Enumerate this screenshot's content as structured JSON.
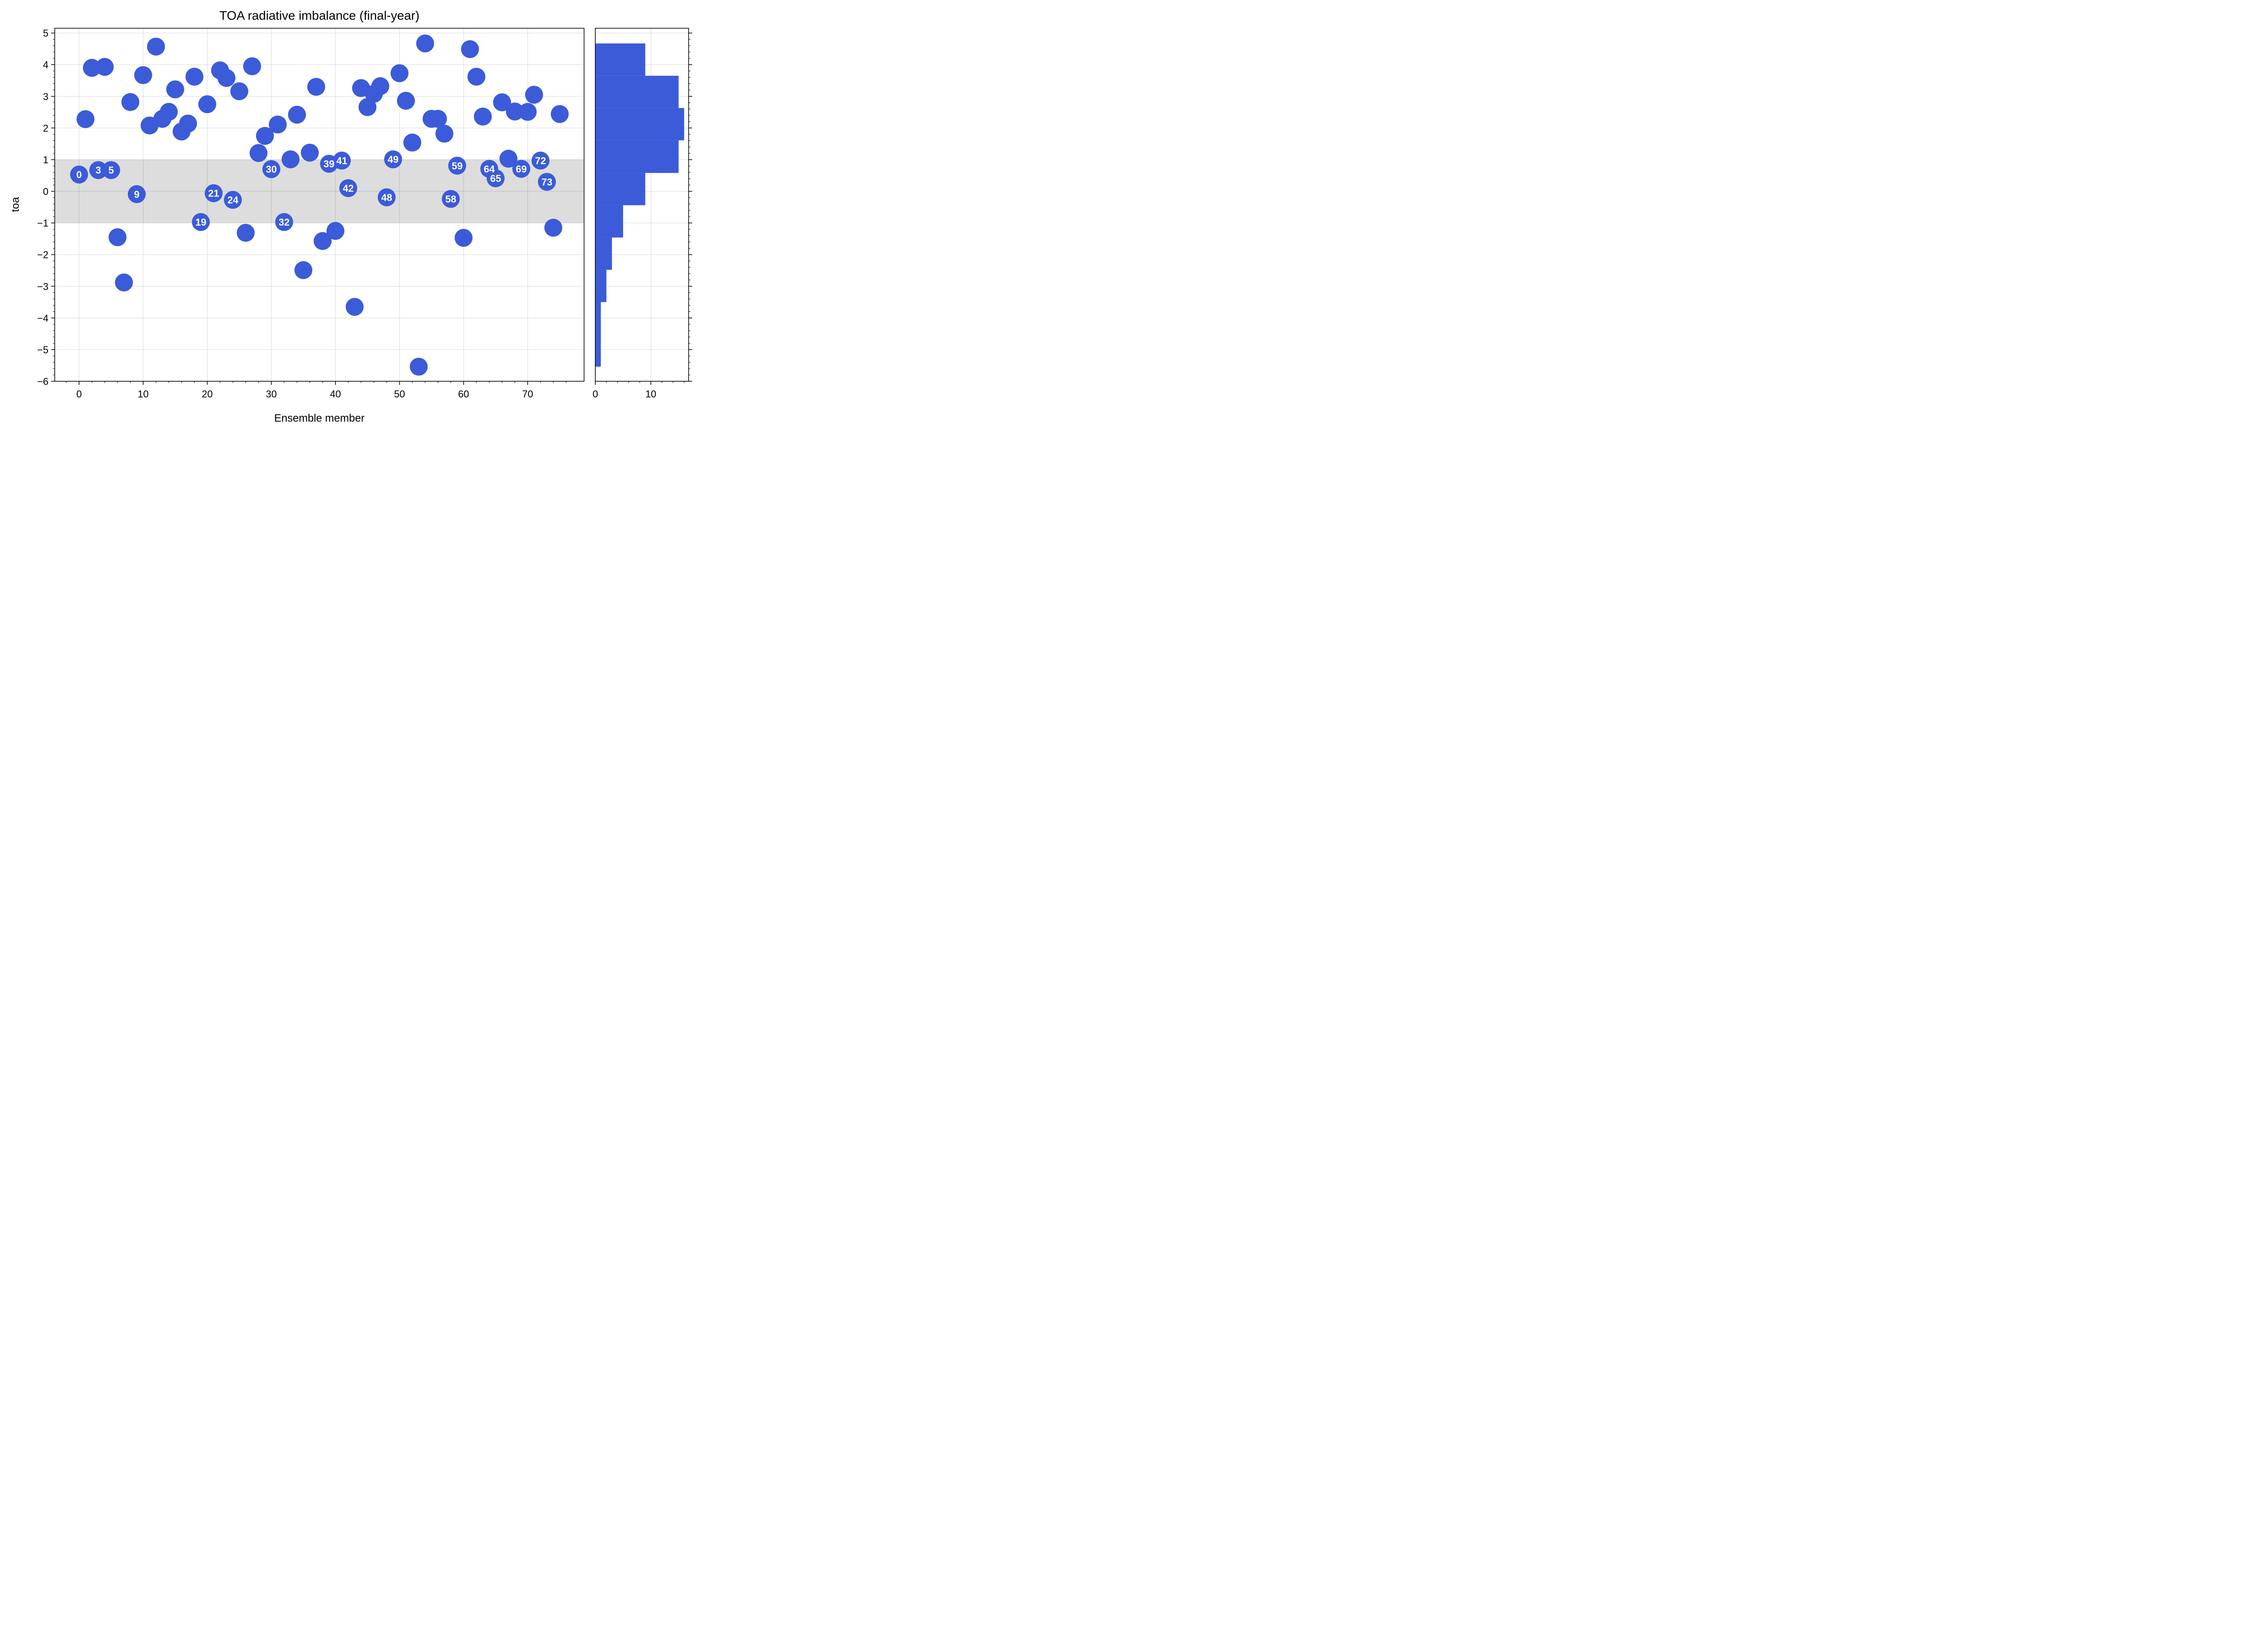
{
  "chart_data": [
    {
      "type": "scatter",
      "title": "TOA radiative imbalance (final-year)",
      "xlabel": "Ensemble member",
      "ylabel": "toa",
      "xlim": [
        -3.8,
        78.8
      ],
      "ylim": [
        -6,
        5.15
      ],
      "xticks": [
        0,
        10,
        20,
        30,
        40,
        50,
        60,
        70
      ],
      "xtick_labels": [
        "0",
        "10",
        "20",
        "30",
        "40",
        "50",
        "60",
        "70"
      ],
      "yticks": [
        -6,
        -5,
        -4,
        -3,
        -2,
        -1,
        0,
        1,
        2,
        3,
        4,
        5
      ],
      "ytick_labels": [
        "−6",
        "−5",
        "−4",
        "−3",
        "−2",
        "−1",
        "0",
        "1",
        "2",
        "3",
        "4",
        "5"
      ],
      "grid": true,
      "shaded_band": {
        "ymin": -1,
        "ymax": 1,
        "color": "#dddddd"
      },
      "marker_color": "#3b5bd9",
      "labeled_members": [
        0,
        3,
        5,
        9,
        19,
        21,
        24,
        30,
        32,
        39,
        41,
        42,
        48,
        49,
        58,
        59,
        64,
        65,
        69,
        72,
        73
      ],
      "x": [
        0,
        1,
        2,
        3,
        4,
        5,
        6,
        7,
        8,
        9,
        10,
        11,
        12,
        13,
        14,
        15,
        16,
        17,
        18,
        19,
        20,
        21,
        22,
        23,
        24,
        25,
        26,
        27,
        28,
        29,
        30,
        31,
        32,
        33,
        34,
        35,
        36,
        37,
        38,
        39,
        40,
        41,
        42,
        43,
        44,
        45,
        46,
        47,
        48,
        49,
        50,
        51,
        52,
        53,
        54,
        55,
        56,
        57,
        58,
        59,
        60,
        61,
        62,
        63,
        64,
        65,
        66,
        67,
        68,
        69,
        70,
        71,
        72,
        73,
        74,
        75
      ],
      "y": [
        0.53,
        2.28,
        3.9,
        0.67,
        3.93,
        0.67,
        -1.45,
        -2.88,
        2.82,
        -0.09,
        3.67,
        2.08,
        4.57,
        2.29,
        2.51,
        3.22,
        1.89,
        2.14,
        3.62,
        -0.97,
        2.75,
        -0.06,
        3.82,
        3.58,
        -0.27,
        3.16,
        -1.31,
        3.95,
        1.21,
        1.75,
        0.7,
        2.11,
        -0.97,
        1.01,
        2.42,
        -2.49,
        1.22,
        3.3,
        -1.57,
        0.87,
        -1.25,
        0.97,
        0.1,
        -3.65,
        3.26,
        2.66,
        3.08,
        3.32,
        -0.19,
        1.01,
        3.73,
        2.86,
        1.54,
        -5.54,
        4.67,
        2.29,
        2.29,
        1.82,
        -0.24,
        0.81,
        -1.47,
        4.49,
        3.62,
        2.36,
        0.71,
        0.41,
        2.81,
        1.03,
        2.52,
        0.71,
        2.51,
        3.05,
        0.97,
        0.3,
        -1.15,
        2.44
      ]
    },
    {
      "type": "bar",
      "orientation": "horizontal",
      "title": "",
      "xlabel": "",
      "ylabel": "",
      "xlim": [
        0,
        16.8
      ],
      "ylim": [
        -6,
        5.15
      ],
      "xticks": [
        0,
        10
      ],
      "xtick_labels": [
        "0",
        "10"
      ],
      "grid": true,
      "bar_color": "#3b5bd9",
      "bin_edges": [
        -5.54,
        -4.52,
        -3.5,
        -2.48,
        -1.46,
        -0.44,
        0.58,
        1.61,
        2.63,
        3.65,
        4.67
      ],
      "values": [
        1,
        1,
        2,
        3,
        5,
        9,
        15,
        16,
        15,
        9
      ]
    }
  ]
}
